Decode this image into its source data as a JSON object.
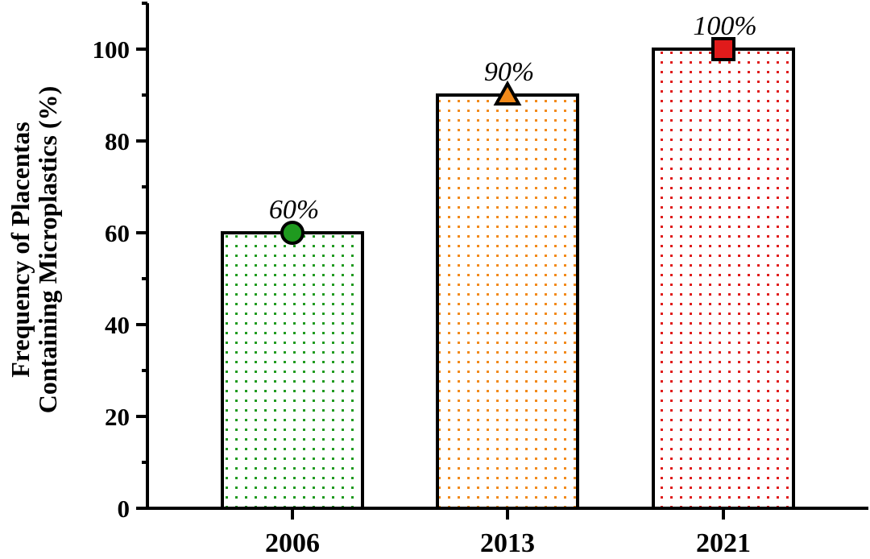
{
  "chart_data": {
    "type": "bar",
    "categories": [
      "2006",
      "2013",
      "2021"
    ],
    "values": [
      60,
      90,
      100
    ],
    "data_labels": [
      "60%",
      "90%",
      "100%"
    ],
    "markers": [
      "circle",
      "triangle",
      "square"
    ],
    "colors": [
      "#1f9a1f",
      "#f28a1a",
      "#e01b1b"
    ],
    "ylabel_lines": [
      "Frequency of Placentas",
      "Containing Microplastics (%)"
    ],
    "xlabel": "",
    "ylim": [
      0,
      110
    ],
    "yticks": [
      0,
      20,
      40,
      60,
      80,
      100
    ],
    "grid": false,
    "legend": "none"
  }
}
